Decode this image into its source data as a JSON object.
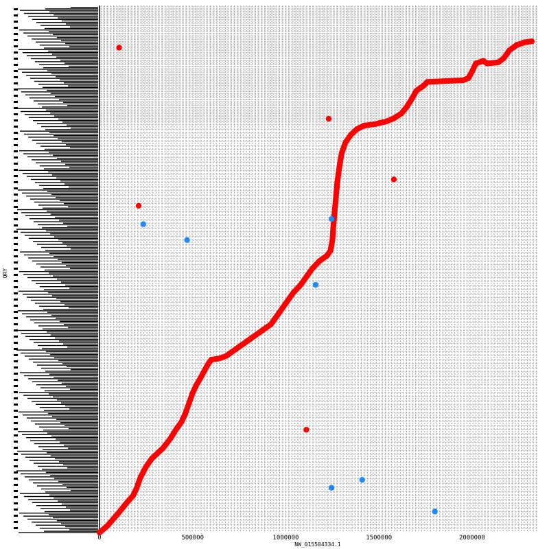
{
  "chart_data": {
    "type": "scatter",
    "xlabel": "NW_015504334.1",
    "ylabel": "QRY",
    "xlim": [
      0,
      2350000
    ],
    "ylim": [
      0,
      1000
    ],
    "x_ticks": [
      0,
      500000,
      1000000,
      1500000,
      2000000
    ],
    "x_tick_labels": [
      "0",
      "500000",
      "1000000",
      "1500000",
      "2000000"
    ],
    "grid": true,
    "legend": "none",
    "colors": {
      "forward": "#ff0000",
      "reverse": "#1e8cff",
      "grid": "#999999"
    },
    "series": [
      {
        "strand": "forward",
        "curve": true,
        "points": [
          [
            0,
            0
          ],
          [
            40000,
            12
          ],
          [
            80000,
            28
          ],
          [
            120000,
            45
          ],
          [
            150000,
            58
          ],
          [
            180000,
            70
          ],
          [
            200000,
            85
          ],
          [
            220000,
            105
          ],
          [
            250000,
            125
          ],
          [
            280000,
            140
          ],
          [
            310000,
            150
          ],
          [
            340000,
            160
          ],
          [
            380000,
            178
          ],
          [
            410000,
            195
          ],
          [
            440000,
            210
          ],
          [
            460000,
            225
          ],
          [
            480000,
            245
          ],
          [
            500000,
            265
          ],
          [
            520000,
            280
          ],
          [
            540000,
            292
          ],
          [
            560000,
            305
          ],
          [
            580000,
            318
          ],
          [
            600000,
            328
          ],
          [
            640000,
            330
          ],
          [
            680000,
            335
          ],
          [
            720000,
            345
          ],
          [
            760000,
            355
          ],
          [
            800000,
            365
          ],
          [
            840000,
            375
          ],
          [
            880000,
            385
          ],
          [
            920000,
            395
          ],
          [
            960000,
            415
          ],
          [
            1000000,
            435
          ],
          [
            1040000,
            455
          ],
          [
            1080000,
            470
          ],
          [
            1110000,
            485
          ],
          [
            1140000,
            500
          ],
          [
            1180000,
            515
          ],
          [
            1220000,
            525
          ],
          [
            1240000,
            535
          ],
          [
            1250000,
            555
          ],
          [
            1255000,
            580
          ],
          [
            1260000,
            600
          ],
          [
            1265000,
            620
          ],
          [
            1270000,
            640
          ],
          [
            1275000,
            660
          ],
          [
            1282000,
            680
          ],
          [
            1290000,
            700
          ],
          [
            1300000,
            720
          ],
          [
            1320000,
            740
          ],
          [
            1350000,
            755
          ],
          [
            1380000,
            765
          ],
          [
            1420000,
            772
          ],
          [
            1480000,
            775
          ],
          [
            1540000,
            780
          ],
          [
            1580000,
            786
          ],
          [
            1620000,
            795
          ],
          [
            1650000,
            808
          ],
          [
            1680000,
            825
          ],
          [
            1700000,
            838
          ],
          [
            1740000,
            848
          ],
          [
            1760000,
            855
          ],
          [
            1950000,
            858
          ],
          [
            1980000,
            862
          ],
          [
            2000000,
            875
          ],
          [
            2020000,
            890
          ],
          [
            2060000,
            895
          ],
          [
            2080000,
            890
          ],
          [
            2140000,
            892
          ],
          [
            2170000,
            900
          ],
          [
            2200000,
            915
          ],
          [
            2240000,
            925
          ],
          [
            2280000,
            930
          ],
          [
            2320000,
            932
          ]
        ]
      },
      {
        "strand": "forward",
        "curve": false,
        "points": [
          [
            105000,
            920
          ],
          [
            1230000,
            785
          ],
          [
            1580000,
            670
          ],
          [
            210000,
            620
          ],
          [
            1110000,
            195
          ]
        ]
      },
      {
        "strand": "reverse",
        "curve": false,
        "points": [
          [
            235000,
            585
          ],
          [
            470000,
            555
          ],
          [
            1245000,
            595
          ],
          [
            1160000,
            470
          ],
          [
            1245000,
            85
          ],
          [
            1410000,
            100
          ],
          [
            1800000,
            40
          ]
        ]
      }
    ]
  }
}
